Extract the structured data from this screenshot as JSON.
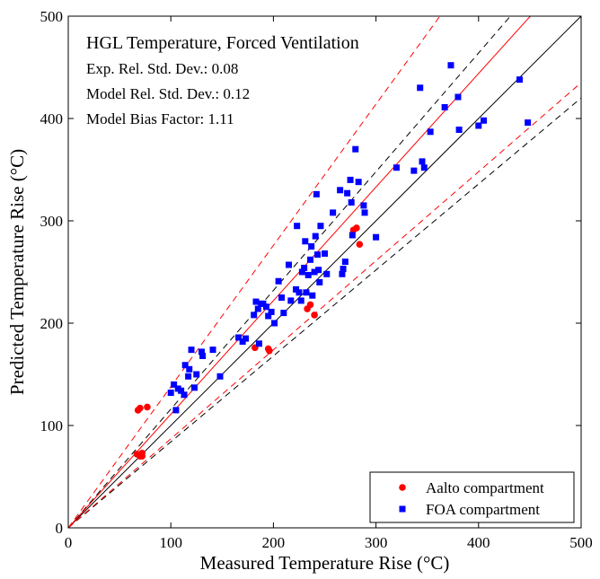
{
  "chart_data": {
    "type": "scatter",
    "title": "HGL Temperature, Forced Ventilation",
    "annotations": [
      "Exp. Rel. Std. Dev.: 0.08",
      "Model Rel. Std. Dev.: 0.12",
      "Model Bias Factor: 1.11"
    ],
    "xlabel": "Measured Temperature Rise (°C)",
    "ylabel": "Predicted Temperature Rise (°C)",
    "xlim": [
      0,
      500
    ],
    "ylim": [
      0,
      500
    ],
    "xticks": [
      0,
      100,
      200,
      300,
      400,
      500
    ],
    "yticks": [
      0,
      100,
      200,
      300,
      400,
      500
    ],
    "grid": false,
    "legend": "bottom-right",
    "reference_lines": {
      "identity": {
        "slope": 1.0,
        "color": "#000000",
        "style": "solid"
      },
      "experimental_bounds": {
        "slopes": [
          1.16,
          0.84
        ],
        "color": "#000000",
        "style": "dashed"
      },
      "model_bias": {
        "slope": 1.11,
        "color": "#ff0000",
        "style": "solid"
      },
      "model_bounds": {
        "slopes": [
          1.38,
          0.87
        ],
        "color": "#ff0000",
        "style": "dashed"
      }
    },
    "series": [
      {
        "name": "Aalto compartment",
        "marker": "circle",
        "color": "#ff0000",
        "points": [
          [
            68,
            115
          ],
          [
            70,
            117
          ],
          [
            77,
            118
          ],
          [
            67,
            72
          ],
          [
            70,
            70
          ],
          [
            72,
            73
          ],
          [
            72,
            70
          ],
          [
            182,
            176
          ],
          [
            195,
            175
          ],
          [
            196,
            173
          ],
          [
            233,
            214
          ],
          [
            236,
            218
          ],
          [
            240,
            208
          ],
          [
            278,
            291
          ],
          [
            281,
            293
          ],
          [
            284,
            277
          ]
        ]
      },
      {
        "name": "FOA compartment",
        "marker": "square",
        "color": "#0000ff",
        "points": [
          [
            100,
            132
          ],
          [
            103,
            140
          ],
          [
            105,
            115
          ],
          [
            107,
            136
          ],
          [
            110,
            134
          ],
          [
            113,
            130
          ],
          [
            114,
            159
          ],
          [
            117,
            148
          ],
          [
            118,
            155
          ],
          [
            120,
            174
          ],
          [
            123,
            137
          ],
          [
            125,
            150
          ],
          [
            130,
            172
          ],
          [
            131,
            168
          ],
          [
            141,
            174
          ],
          [
            148,
            148
          ],
          [
            166,
            186
          ],
          [
            170,
            182
          ],
          [
            173,
            185
          ],
          [
            181,
            208
          ],
          [
            183,
            221
          ],
          [
            185,
            214
          ],
          [
            186,
            180
          ],
          [
            188,
            219
          ],
          [
            190,
            219
          ],
          [
            193,
            216
          ],
          [
            195,
            207
          ],
          [
            198,
            211
          ],
          [
            201,
            200
          ],
          [
            205,
            241
          ],
          [
            208,
            225
          ],
          [
            210,
            210
          ],
          [
            215,
            257
          ],
          [
            217,
            222
          ],
          [
            222,
            233
          ],
          [
            223,
            295
          ],
          [
            225,
            230
          ],
          [
            227,
            222
          ],
          [
            228,
            250
          ],
          [
            230,
            254
          ],
          [
            231,
            280
          ],
          [
            232,
            230
          ],
          [
            234,
            247
          ],
          [
            236,
            262
          ],
          [
            237,
            275
          ],
          [
            238,
            227
          ],
          [
            240,
            250
          ],
          [
            241,
            285
          ],
          [
            242,
            326
          ],
          [
            243,
            267
          ],
          [
            244,
            252
          ],
          [
            245,
            240
          ],
          [
            246,
            295
          ],
          [
            250,
            268
          ],
          [
            252,
            248
          ],
          [
            258,
            308
          ],
          [
            265,
            330
          ],
          [
            267,
            248
          ],
          [
            268,
            253
          ],
          [
            270,
            260
          ],
          [
            272,
            327
          ],
          [
            275,
            340
          ],
          [
            276,
            318
          ],
          [
            277,
            286
          ],
          [
            280,
            370
          ],
          [
            283,
            338
          ],
          [
            288,
            315
          ],
          [
            289,
            308
          ],
          [
            300,
            284
          ],
          [
            320,
            352
          ],
          [
            337,
            349
          ],
          [
            343,
            430
          ],
          [
            345,
            358
          ],
          [
            347,
            352
          ],
          [
            353,
            387
          ],
          [
            367,
            411
          ],
          [
            373,
            452
          ],
          [
            380,
            421
          ],
          [
            381,
            389
          ],
          [
            400,
            393
          ],
          [
            405,
            398
          ],
          [
            440,
            438
          ],
          [
            448,
            396
          ]
        ]
      }
    ]
  }
}
